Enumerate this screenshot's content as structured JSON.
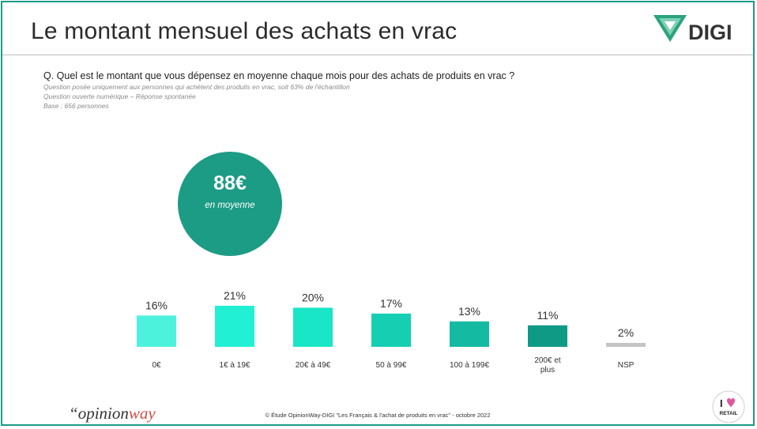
{
  "slide": {
    "title": "Le montant mensuel des achats en vrac",
    "question": "Q. Quel est le montant que vous dépensez en moyenne chaque mois pour des achats de produits en vrac ?",
    "notes": [
      "Question posée uniquement aux personnes qui achètent des produits en vrac, soit 63% de l'échantillon",
      "Question ouverte numérique – Réponse spontanée",
      "Base : 656 personnes"
    ],
    "average": {
      "value": "88€",
      "label": "en moyenne"
    },
    "source": "© Étude OpinionWay-DIGI \"Les Français & l'achat de produits en vrac\" - octobre 2022",
    "brand_logo_text": "DIGI",
    "opinionway_logo": {
      "quote": "“",
      "part1": "opinion",
      "part2": "way"
    },
    "retail_badge": {
      "letter": "I",
      "word": "RETAIL"
    }
  },
  "chart_data": {
    "type": "bar",
    "categories": [
      "0€",
      "1€ à 19€",
      "20€ à 49€",
      "50 à 99€",
      "100 à 199€",
      "200€ et plus",
      "NSP"
    ],
    "values": [
      16,
      21,
      20,
      17,
      13,
      11,
      2
    ],
    "data_labels": [
      "16%",
      "21%",
      "20%",
      "17%",
      "13%",
      "11%",
      "2%"
    ],
    "colors": [
      "#4df2dc",
      "#22f0d4",
      "#18e6c6",
      "#16cfb2",
      "#14bba2",
      "#0f9a85",
      "#c4c4c4"
    ],
    "ylim": [
      0,
      25
    ],
    "grid": false
  }
}
